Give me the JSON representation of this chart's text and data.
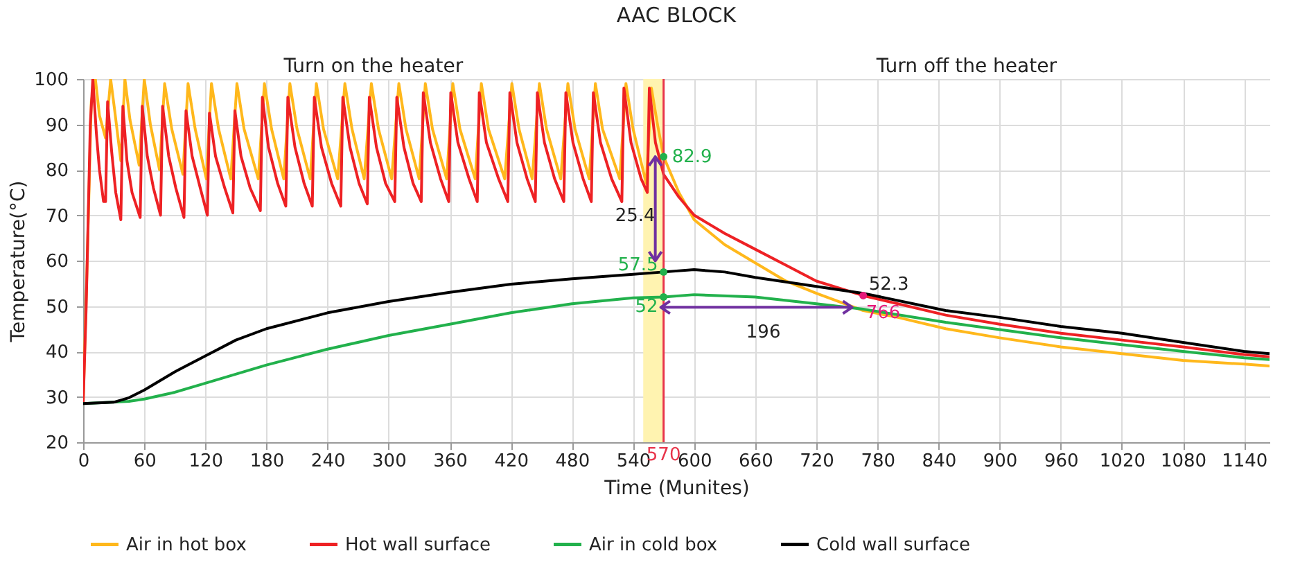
{
  "chart_data": {
    "type": "line",
    "title": "AAC BLOCK",
    "xlabel": "Time (Munites)",
    "ylabel": "Temperature(°C)",
    "xlim": [
      0,
      1165
    ],
    "xticks": [
      0,
      60,
      120,
      180,
      240,
      300,
      360,
      420,
      480,
      540,
      600,
      660,
      720,
      780,
      840,
      900,
      960,
      1020,
      1080,
      1140
    ],
    "ylim": [
      20,
      100
    ],
    "yticks": [
      20,
      30,
      40,
      50,
      60,
      70,
      80,
      90,
      100
    ],
    "grid": true,
    "legend": "bottom",
    "line_style": "solid",
    "series": [
      {
        "name": "Air in hot box",
        "color": "#ffb81c",
        "x": [
          0,
          4,
          8,
          12,
          16,
          22,
          27,
          31,
          37,
          41,
          46,
          55,
          60,
          66,
          75,
          80,
          87,
          98,
          103,
          110,
          121,
          126,
          133,
          145,
          151,
          158,
          172,
          178,
          185,
          197,
          203,
          210,
          223,
          229,
          236,
          250,
          257,
          264,
          276,
          283,
          290,
          303,
          310,
          317,
          330,
          336,
          343,
          357,
          363,
          370,
          385,
          391,
          398,
          414,
          421,
          428,
          441,
          448,
          455,
          469,
          476,
          483,
          497,
          503,
          510,
          527,
          533,
          540,
          553,
          558,
          564,
          570,
          585,
          600,
          630,
          660,
          690,
          720,
          766,
          800,
          847,
          900,
          960,
          1020,
          1080,
          1140,
          1165
        ],
        "values": [
          28.5,
          60,
          95,
          100,
          92,
          87,
          100,
          93,
          82,
          100,
          91,
          81,
          100,
          90,
          80,
          99,
          89,
          79,
          99,
          89,
          78,
          99,
          89,
          78,
          99,
          89,
          78,
          99,
          89,
          78,
          99,
          89,
          78,
          99,
          89,
          78,
          99,
          89,
          78,
          99,
          89,
          78,
          99,
          89,
          78,
          99,
          89,
          78,
          99,
          89,
          78,
          99,
          89,
          78,
          99,
          89,
          78,
          99,
          89,
          78,
          99,
          89,
          78,
          99,
          89,
          78,
          99,
          89,
          77,
          98,
          90,
          82.9,
          75,
          69,
          63.5,
          59.5,
          55.5,
          52.8,
          49,
          47.5,
          45,
          43,
          41,
          39.5,
          38,
          37.2,
          36.8
        ]
      },
      {
        "name": "Hot wall surface",
        "color": "#ee2124",
        "x": [
          0,
          3,
          7,
          9.5,
          13,
          16,
          20,
          22,
          24,
          28,
          32,
          37,
          39,
          43,
          48,
          56,
          58,
          63,
          69,
          76,
          78,
          84,
          91,
          99,
          101,
          107,
          115,
          122,
          124,
          130,
          139,
          147,
          149,
          155,
          164,
          174,
          176,
          182,
          191,
          199,
          201,
          208,
          217,
          225,
          227,
          234,
          244,
          253,
          255,
          262,
          271,
          279,
          281,
          288,
          297,
          306,
          308,
          315,
          324,
          332,
          334,
          341,
          351,
          359,
          361,
          368,
          379,
          387,
          389,
          396,
          408,
          417,
          419,
          426,
          436,
          444,
          446,
          453,
          463,
          472,
          474,
          481,
          491,
          499,
          501,
          508,
          519,
          529,
          531,
          538,
          548,
          554,
          556,
          562,
          570,
          585,
          600,
          630,
          660,
          690,
          720,
          766,
          800,
          847,
          900,
          960,
          1020,
          1080,
          1140,
          1165
        ],
        "values": [
          28.5,
          50,
          90,
          100,
          88,
          80,
          73,
          73,
          95,
          84,
          75,
          69,
          94,
          82,
          75,
          69.5,
          94,
          83,
          76,
          70,
          94,
          83,
          76,
          69.5,
          93,
          83,
          76,
          70,
          92.5,
          83,
          76,
          70.5,
          93,
          83,
          76,
          71,
          96,
          85,
          77,
          72,
          96,
          85,
          77,
          72,
          96,
          85,
          77,
          72,
          96,
          85,
          77,
          72.5,
          96,
          85,
          77,
          73,
          96,
          85,
          77,
          73,
          97,
          86,
          78,
          73,
          97,
          86,
          78,
          73,
          97,
          86,
          78,
          73,
          97,
          86,
          78,
          73,
          97,
          86,
          78,
          73,
          97,
          86,
          78,
          73,
          97,
          86,
          78,
          73,
          98,
          86,
          78,
          75,
          98,
          86,
          79,
          74,
          70,
          66,
          62.5,
          59,
          55.5,
          52.3,
          50.5,
          48,
          46,
          44,
          42.5,
          41,
          39.3,
          38.8
        ]
      },
      {
        "name": "Air in cold box",
        "color": "#22b14c",
        "x": [
          0,
          45,
          60,
          90,
          120,
          180,
          240,
          300,
          360,
          420,
          480,
          540,
          570,
          600,
          660,
          720,
          766,
          847,
          900,
          960,
          1020,
          1080,
          1140,
          1165
        ],
        "values": [
          28.5,
          29,
          29.5,
          31,
          33,
          37,
          40.5,
          43.5,
          46,
          48.5,
          50.5,
          51.8,
          52,
          52.5,
          52,
          50.5,
          49.3,
          46.4,
          44.8,
          43,
          41.5,
          40,
          38.6,
          38.2
        ]
      },
      {
        "name": "Cold wall surface",
        "color": "#000000",
        "x": [
          0,
          30,
          45,
          60,
          90,
          120,
          150,
          180,
          240,
          300,
          360,
          420,
          480,
          540,
          570,
          600,
          630,
          660,
          720,
          766,
          847,
          900,
          960,
          1020,
          1080,
          1140,
          1165
        ],
        "values": [
          28.5,
          28.8,
          29.8,
          31.5,
          35.5,
          39,
          42.5,
          45,
          48.5,
          51,
          53,
          54.8,
          56,
          57,
          57.5,
          58,
          57.5,
          56.3,
          54.3,
          52.8,
          49,
          47.5,
          45.5,
          44,
          42,
          40,
          39.5
        ]
      },
      {
        "type": "scatter",
        "color": "#22b14c",
        "marker": "circle",
        "x": [
          570,
          570,
          570
        ],
        "values": [
          82.9,
          57.5,
          52
        ],
        "value_labels": [
          "82.9",
          "57.5",
          "52"
        ]
      },
      {
        "type": "scatter",
        "color": "#e6197a",
        "marker": "circle",
        "x": [
          766
        ],
        "values": [
          52.3
        ],
        "value_labels": [
          "52.3"
        ]
      }
    ],
    "ref_lines": [
      {
        "axis": "x",
        "value": 570,
        "label": "570",
        "color": "#e8344a"
      }
    ],
    "bands": [
      {
        "axis": "x",
        "from": 550,
        "to": 570,
        "color": "#fff3b0"
      }
    ],
    "annotations": [
      "Turn on the heater",
      "Turn off the heater",
      {
        "text": "25.4",
        "x": 570,
        "y": 70
      },
      "196",
      {
        "text": "766",
        "x": 766,
        "y": 48.5
      }
    ]
  }
}
